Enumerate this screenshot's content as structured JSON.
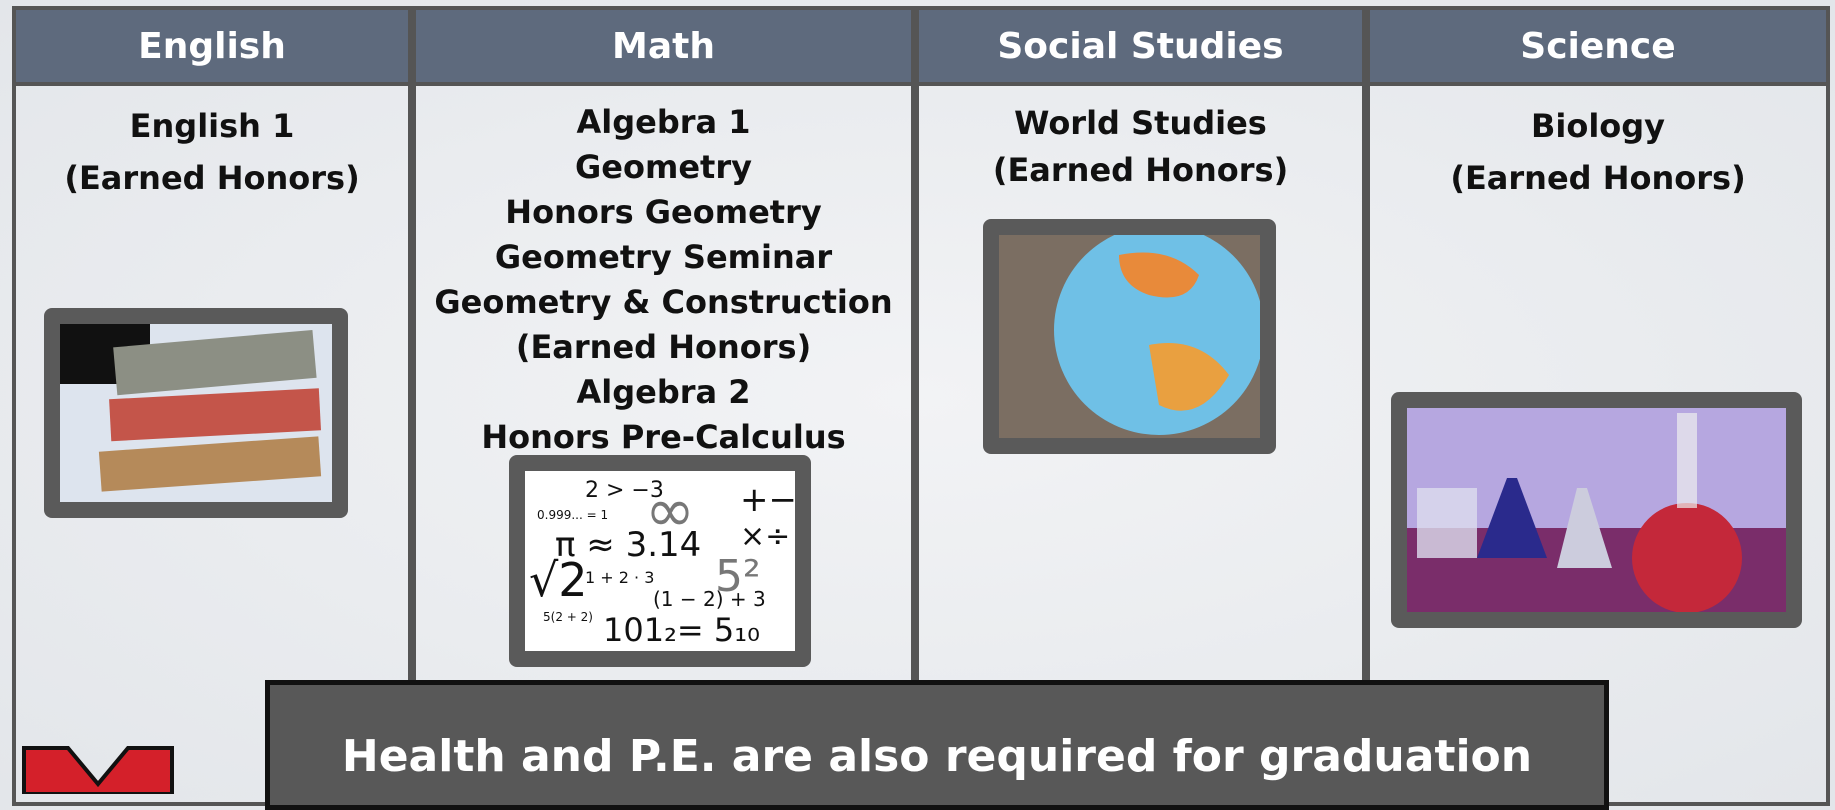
{
  "columns": [
    {
      "header": "English",
      "courses": [
        "English 1",
        "(Earned Honors)"
      ]
    },
    {
      "header": "Math",
      "courses": [
        "Algebra 1",
        "Geometry",
        "Honors Geometry",
        "Geometry Seminar",
        "Geometry & Construction",
        "(Earned Honors)",
        "Algebra 2",
        "Honors Pre-Calculus"
      ]
    },
    {
      "header": "Social Studies",
      "courses": [
        "World Studies",
        "(Earned Honors)"
      ]
    },
    {
      "header": "Science",
      "courses": [
        "Biology",
        "(Earned Honors)"
      ]
    }
  ],
  "math_image": {
    "texts": [
      "2 > −3",
      "0.999... = 1",
      "π ≈ 3.14",
      "√2",
      "1 + 2 · 3",
      "(1 − 2) + 3",
      "5(2 + 2)",
      "101₂= 5₁₀",
      "5²",
      "∞",
      "+−",
      "×÷"
    ]
  },
  "banner": "Health and P.E. are also required for graduation"
}
